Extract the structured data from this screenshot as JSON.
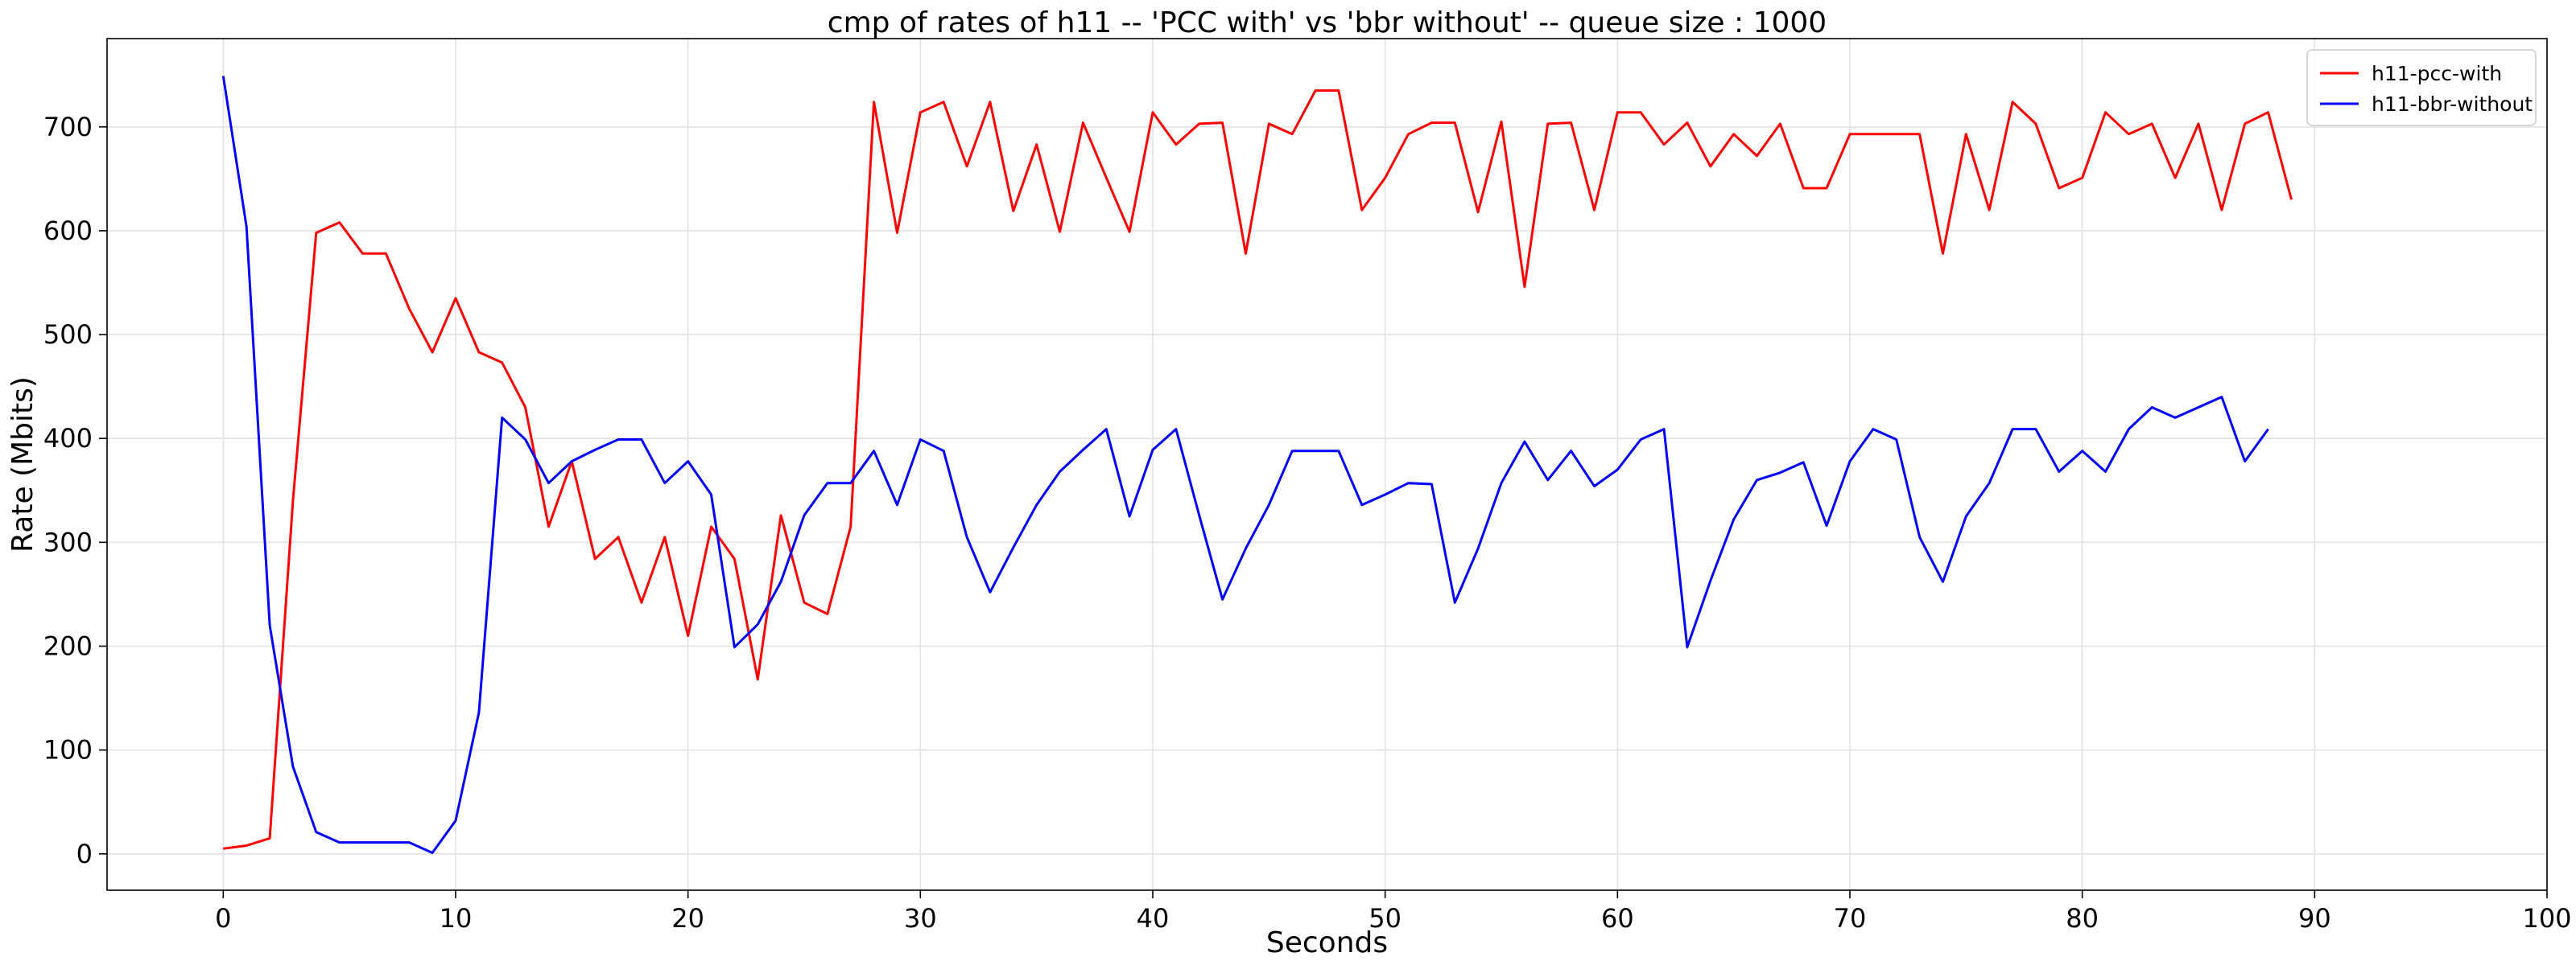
{
  "chart_data": {
    "type": "line",
    "title": "cmp of rates of h11 -- 'PCC with' vs 'bbr without' -- queue size : 1000",
    "xlabel": "Seconds",
    "ylabel": "Rate (Mbits)",
    "xlim": [
      -5,
      100
    ],
    "ylim": [
      -35,
      785
    ],
    "xticks": [
      0,
      10,
      20,
      30,
      40,
      50,
      60,
      70,
      80,
      90,
      100
    ],
    "yticks": [
      0,
      100,
      200,
      300,
      400,
      500,
      600,
      700
    ],
    "grid": true,
    "legend_position": "top-right",
    "series": [
      {
        "name": "h11-pcc-with",
        "color": "#ff0000",
        "x": [
          0,
          1,
          2,
          3,
          4,
          5,
          6,
          7,
          8,
          9,
          10,
          11,
          12,
          13,
          14,
          15,
          16,
          17,
          18,
          19,
          20,
          21,
          22,
          23,
          24,
          25,
          26,
          27,
          28,
          29,
          30,
          31,
          32,
          33,
          34,
          35,
          36,
          37,
          38,
          39,
          40,
          41,
          42,
          43,
          44,
          45,
          46,
          47,
          48,
          49,
          50,
          51,
          52,
          53,
          54,
          55,
          56,
          57,
          58,
          59,
          60,
          61,
          62,
          63,
          64,
          65,
          66,
          67,
          68,
          69,
          70,
          71,
          72,
          73,
          74,
          75,
          76,
          77,
          78,
          79,
          80,
          81,
          82,
          83,
          84,
          85,
          86,
          87,
          88,
          89
        ],
        "values": [
          5,
          8,
          15,
          340,
          598,
          608,
          578,
          578,
          525,
          483,
          535,
          483,
          473,
          430,
          315,
          378,
          284,
          305,
          242,
          305,
          210,
          315,
          284,
          168,
          326,
          242,
          231,
          315,
          724,
          598,
          714,
          724,
          662,
          724,
          619,
          683,
          599,
          704,
          651,
          599,
          714,
          683,
          703,
          704,
          578,
          703,
          693,
          735,
          735,
          620,
          651,
          693,
          704,
          704,
          618,
          705,
          546,
          703,
          704,
          620,
          714,
          714,
          683,
          704,
          662,
          693,
          672,
          703,
          641,
          641,
          693,
          693,
          693,
          693,
          578,
          693,
          620,
          724,
          703,
          641,
          651,
          714,
          693,
          703,
          651,
          703,
          620,
          703,
          714,
          630
        ]
      },
      {
        "name": "h11-bbr-without",
        "color": "#0000ff",
        "x": [
          0,
          1,
          2,
          3,
          4,
          5,
          6,
          7,
          8,
          9,
          10,
          11,
          12,
          13,
          14,
          15,
          16,
          17,
          18,
          19,
          20,
          21,
          22,
          23,
          24,
          25,
          26,
          27,
          28,
          29,
          30,
          31,
          32,
          33,
          34,
          35,
          36,
          37,
          38,
          39,
          40,
          41,
          42,
          43,
          44,
          45,
          46,
          47,
          48,
          49,
          50,
          51,
          52,
          53,
          54,
          55,
          56,
          57,
          58,
          59,
          60,
          61,
          62,
          63,
          64,
          65,
          66,
          67,
          68,
          69,
          70,
          71,
          72,
          73,
          74,
          75,
          76,
          77,
          78,
          79,
          80,
          81,
          82,
          83,
          84,
          85,
          86,
          87,
          88
        ],
        "values": [
          749,
          604,
          220,
          84,
          21,
          11,
          11,
          11,
          11,
          1,
          32,
          136,
          420,
          399,
          357,
          378,
          389,
          399,
          399,
          357,
          378,
          346,
          199,
          221,
          262,
          326,
          357,
          357,
          388,
          336,
          399,
          388,
          305,
          252,
          295,
          336,
          368,
          389,
          409,
          325,
          389,
          409,
          326,
          245,
          294,
          336,
          388,
          388,
          388,
          336,
          346,
          357,
          356,
          242,
          294,
          357,
          397,
          360,
          388,
          354,
          370,
          399,
          409,
          199,
          263,
          322,
          360,
          367,
          377,
          316,
          378,
          409,
          399,
          305,
          262,
          325,
          357,
          409,
          409,
          368,
          388,
          368,
          409,
          430,
          420,
          430,
          440,
          378,
          409
        ]
      }
    ]
  }
}
